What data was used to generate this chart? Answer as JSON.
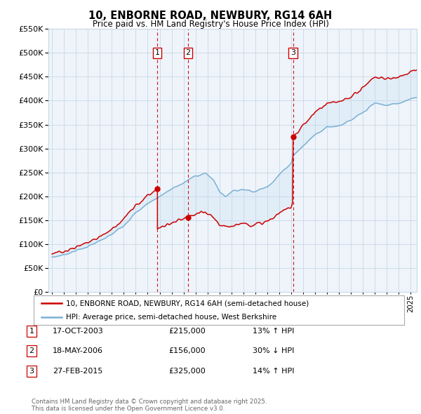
{
  "title": "10, ENBORNE ROAD, NEWBURY, RG14 6AH",
  "subtitle": "Price paid vs. HM Land Registry's House Price Index (HPI)",
  "ylim": [
    0,
    550000
  ],
  "yticks": [
    0,
    50000,
    100000,
    150000,
    200000,
    250000,
    300000,
    350000,
    400000,
    450000,
    500000,
    550000
  ],
  "xlim_start": 1994.7,
  "xlim_end": 2025.5,
  "transactions": [
    {
      "label": "1",
      "date": "17-OCT-2003",
      "price": 215000,
      "hpi_diff": "13% ↑ HPI",
      "x": 2003.8
    },
    {
      "label": "2",
      "date": "18-MAY-2006",
      "price": 156000,
      "hpi_diff": "30% ↓ HPI",
      "x": 2006.38
    },
    {
      "label": "3",
      "date": "27-FEB-2015",
      "price": 325000,
      "hpi_diff": "14% ↑ HPI",
      "x": 2015.15
    }
  ],
  "legend_entries": [
    "10, ENBORNE ROAD, NEWBURY, RG14 6AH (semi-detached house)",
    "HPI: Average price, semi-detached house, West Berkshire"
  ],
  "footer": "Contains HM Land Registry data © Crown copyright and database right 2025.\nThis data is licensed under the Open Government Licence v3.0.",
  "line_color_price": "#cc0000",
  "line_color_hpi": "#7ab0d4",
  "shading_color": "#d6e8f5",
  "grid_color": "#c8d8e8",
  "background_color": "#ffffff"
}
